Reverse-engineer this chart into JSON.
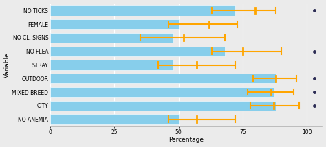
{
  "variables": [
    "NO TICKS",
    "FEMALE",
    "NO CL. SIGNS",
    "NO FLEA",
    "STRAY",
    "OUTDOOR",
    "MIXED BREED",
    "CITY",
    "NO ANEMIA"
  ],
  "bar_values": [
    72,
    50,
    48,
    68,
    48,
    88,
    87,
    88,
    50
  ],
  "ci_low": [
    63,
    46,
    35,
    63,
    42,
    79,
    77,
    78,
    46
  ],
  "ci_center": [
    80,
    62,
    52,
    75,
    57,
    88,
    86,
    87,
    57
  ],
  "ci_high": [
    88,
    73,
    68,
    90,
    72,
    96,
    95,
    97,
    72
  ],
  "has_dot": [
    true,
    false,
    false,
    true,
    false,
    true,
    true,
    true,
    false
  ],
  "bar_color": "#87CEEB",
  "ci_color": "#FFA500",
  "dot_color": "#2c2c54",
  "xlabel": "Percentage",
  "ylabel": "Variable",
  "xlim": [
    0,
    106
  ],
  "xticks": [
    0,
    25,
    50,
    75,
    100
  ],
  "bg_color": "#ebebeb",
  "plot_bg": "#ebebeb",
  "bar_height": 0.72,
  "label_fontsize": 6.5,
  "tick_fontsize": 5.5,
  "ci_lw": 1.5,
  "cap_size": 0.22
}
